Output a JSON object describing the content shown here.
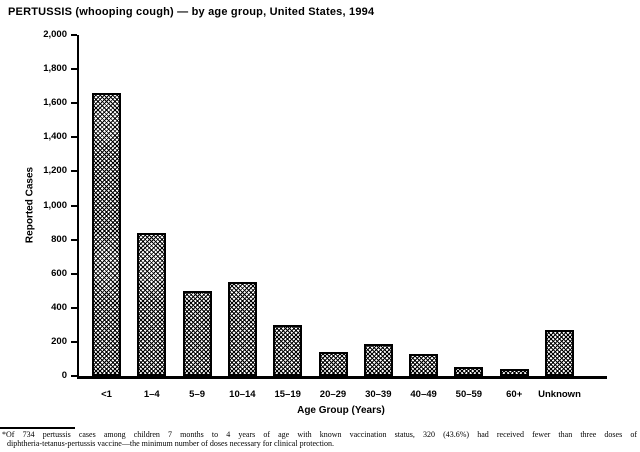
{
  "figure": {
    "title": "PERTUSSIS (whooping cough) — by age group, United States, 1994",
    "footnote_line1": "*Of 734 pertussis cases among children 7 months to 4 years of age with known vaccination status, 320 (43.6%) had received fewer than three doses of",
    "footnote_line2": "diphtheria-tetanus-pertussis vaccine—the minimum number of doses necessary for clinical protection."
  },
  "chart_data": {
    "type": "bar",
    "title": "PERTUSSIS (whooping cough) — by age group, United States, 1994",
    "categories": [
      "<1",
      "1–4",
      "5–9",
      "10–14",
      "15–19",
      "20–29",
      "30–39",
      "40–49",
      "50–59",
      "60+",
      "Unknown"
    ],
    "values": [
      1660,
      840,
      500,
      550,
      300,
      140,
      190,
      130,
      50,
      40,
      270
    ],
    "xlabel": "Age Group (Years)",
    "ylabel": "Reported Cases",
    "ylim": [
      0,
      2000
    ],
    "ytick_step": 200,
    "ytick_labels_bottom_to_top": [
      "0",
      "200",
      "400",
      "600",
      "800",
      "1,000",
      "1,200",
      "1,400",
      "1,600",
      "1,800",
      "2,000"
    ],
    "grid": false,
    "legend": "none",
    "bar_fill": "black-white crosshatch pattern",
    "colors": {
      "bar_outline": "#000000",
      "background": "#ffffff",
      "text": "#000000"
    }
  }
}
